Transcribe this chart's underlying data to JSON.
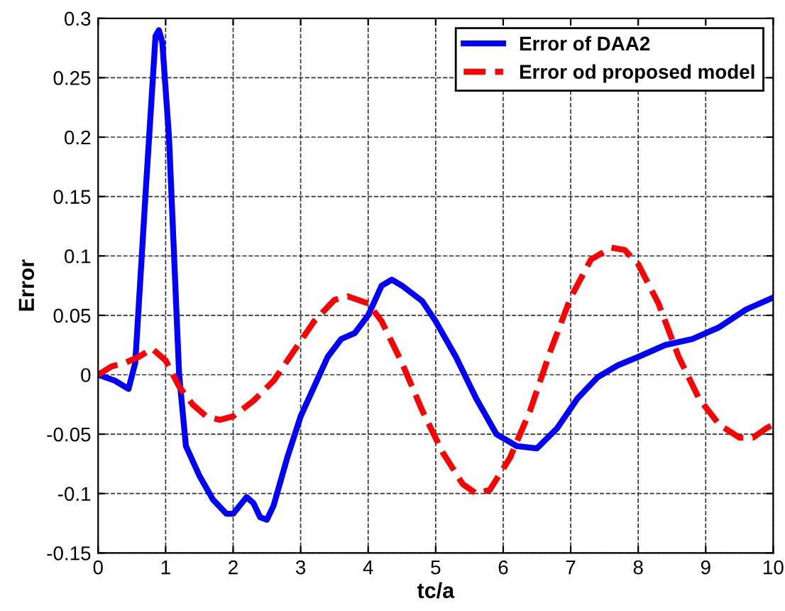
{
  "chart_data": {
    "type": "line",
    "xlabel": "tc/a",
    "ylabel": "Error",
    "xlim": [
      0,
      10
    ],
    "ylim": [
      -0.15,
      0.3
    ],
    "xticks": [
      0,
      1,
      2,
      3,
      4,
      5,
      6,
      7,
      8,
      9,
      10
    ],
    "yticks": [
      -0.15,
      -0.1,
      -0.05,
      0,
      0.05,
      0.1,
      0.15,
      0.2,
      0.25,
      0.3
    ],
    "grid": true,
    "legend": "top right",
    "series": [
      {
        "name": "Error of DAA2",
        "color": "#0000ff",
        "line_style": "solid",
        "x": [
          0,
          0.25,
          0.45,
          0.55,
          0.7,
          0.85,
          0.9,
          0.95,
          1.05,
          1.2,
          1.3,
          1.5,
          1.7,
          1.9,
          2.0,
          2.1,
          2.2,
          2.3,
          2.4,
          2.5,
          2.6,
          2.8,
          3.0,
          3.2,
          3.4,
          3.6,
          3.8,
          4.0,
          4.2,
          4.35,
          4.5,
          4.8,
          5.0,
          5.3,
          5.6,
          5.9,
          6.2,
          6.5,
          6.8,
          7.1,
          7.4,
          7.7,
          8.0,
          8.4,
          8.8,
          9.2,
          9.6,
          10
        ],
        "values": [
          0,
          -0.005,
          -0.012,
          0.01,
          0.15,
          0.285,
          0.29,
          0.28,
          0.2,
          0.0,
          -0.06,
          -0.085,
          -0.105,
          -0.117,
          -0.117,
          -0.11,
          -0.103,
          -0.108,
          -0.12,
          -0.122,
          -0.11,
          -0.07,
          -0.035,
          -0.01,
          0.015,
          0.03,
          0.035,
          0.05,
          0.075,
          0.08,
          0.075,
          0.062,
          0.045,
          0.015,
          -0.02,
          -0.05,
          -0.06,
          -0.062,
          -0.045,
          -0.02,
          -0.002,
          0.008,
          0.015,
          0.025,
          0.03,
          0.04,
          0.055,
          0.065
        ]
      },
      {
        "name": "Error od proposed model",
        "color": "#ff0000",
        "line_style": "dashed",
        "x": [
          0,
          0.2,
          0.4,
          0.6,
          0.8,
          1.0,
          1.2,
          1.4,
          1.6,
          1.8,
          2.0,
          2.3,
          2.6,
          2.9,
          3.2,
          3.5,
          3.7,
          4.0,
          4.2,
          4.5,
          4.8,
          5.1,
          5.4,
          5.6,
          5.8,
          6.1,
          6.4,
          6.7,
          7.0,
          7.3,
          7.6,
          7.8,
          8.0,
          8.3,
          8.6,
          8.9,
          9.2,
          9.5,
          9.7,
          9.9,
          10
        ],
        "values": [
          0,
          0.007,
          0.01,
          0.015,
          0.022,
          0.012,
          -0.01,
          -0.025,
          -0.035,
          -0.038,
          -0.035,
          -0.022,
          -0.005,
          0.02,
          0.045,
          0.063,
          0.066,
          0.06,
          0.045,
          0.01,
          -0.03,
          -0.065,
          -0.092,
          -0.1,
          -0.097,
          -0.07,
          -0.03,
          0.02,
          0.065,
          0.097,
          0.107,
          0.105,
          0.093,
          0.06,
          0.015,
          -0.02,
          -0.042,
          -0.053,
          -0.053,
          -0.045,
          -0.042
        ]
      }
    ]
  }
}
